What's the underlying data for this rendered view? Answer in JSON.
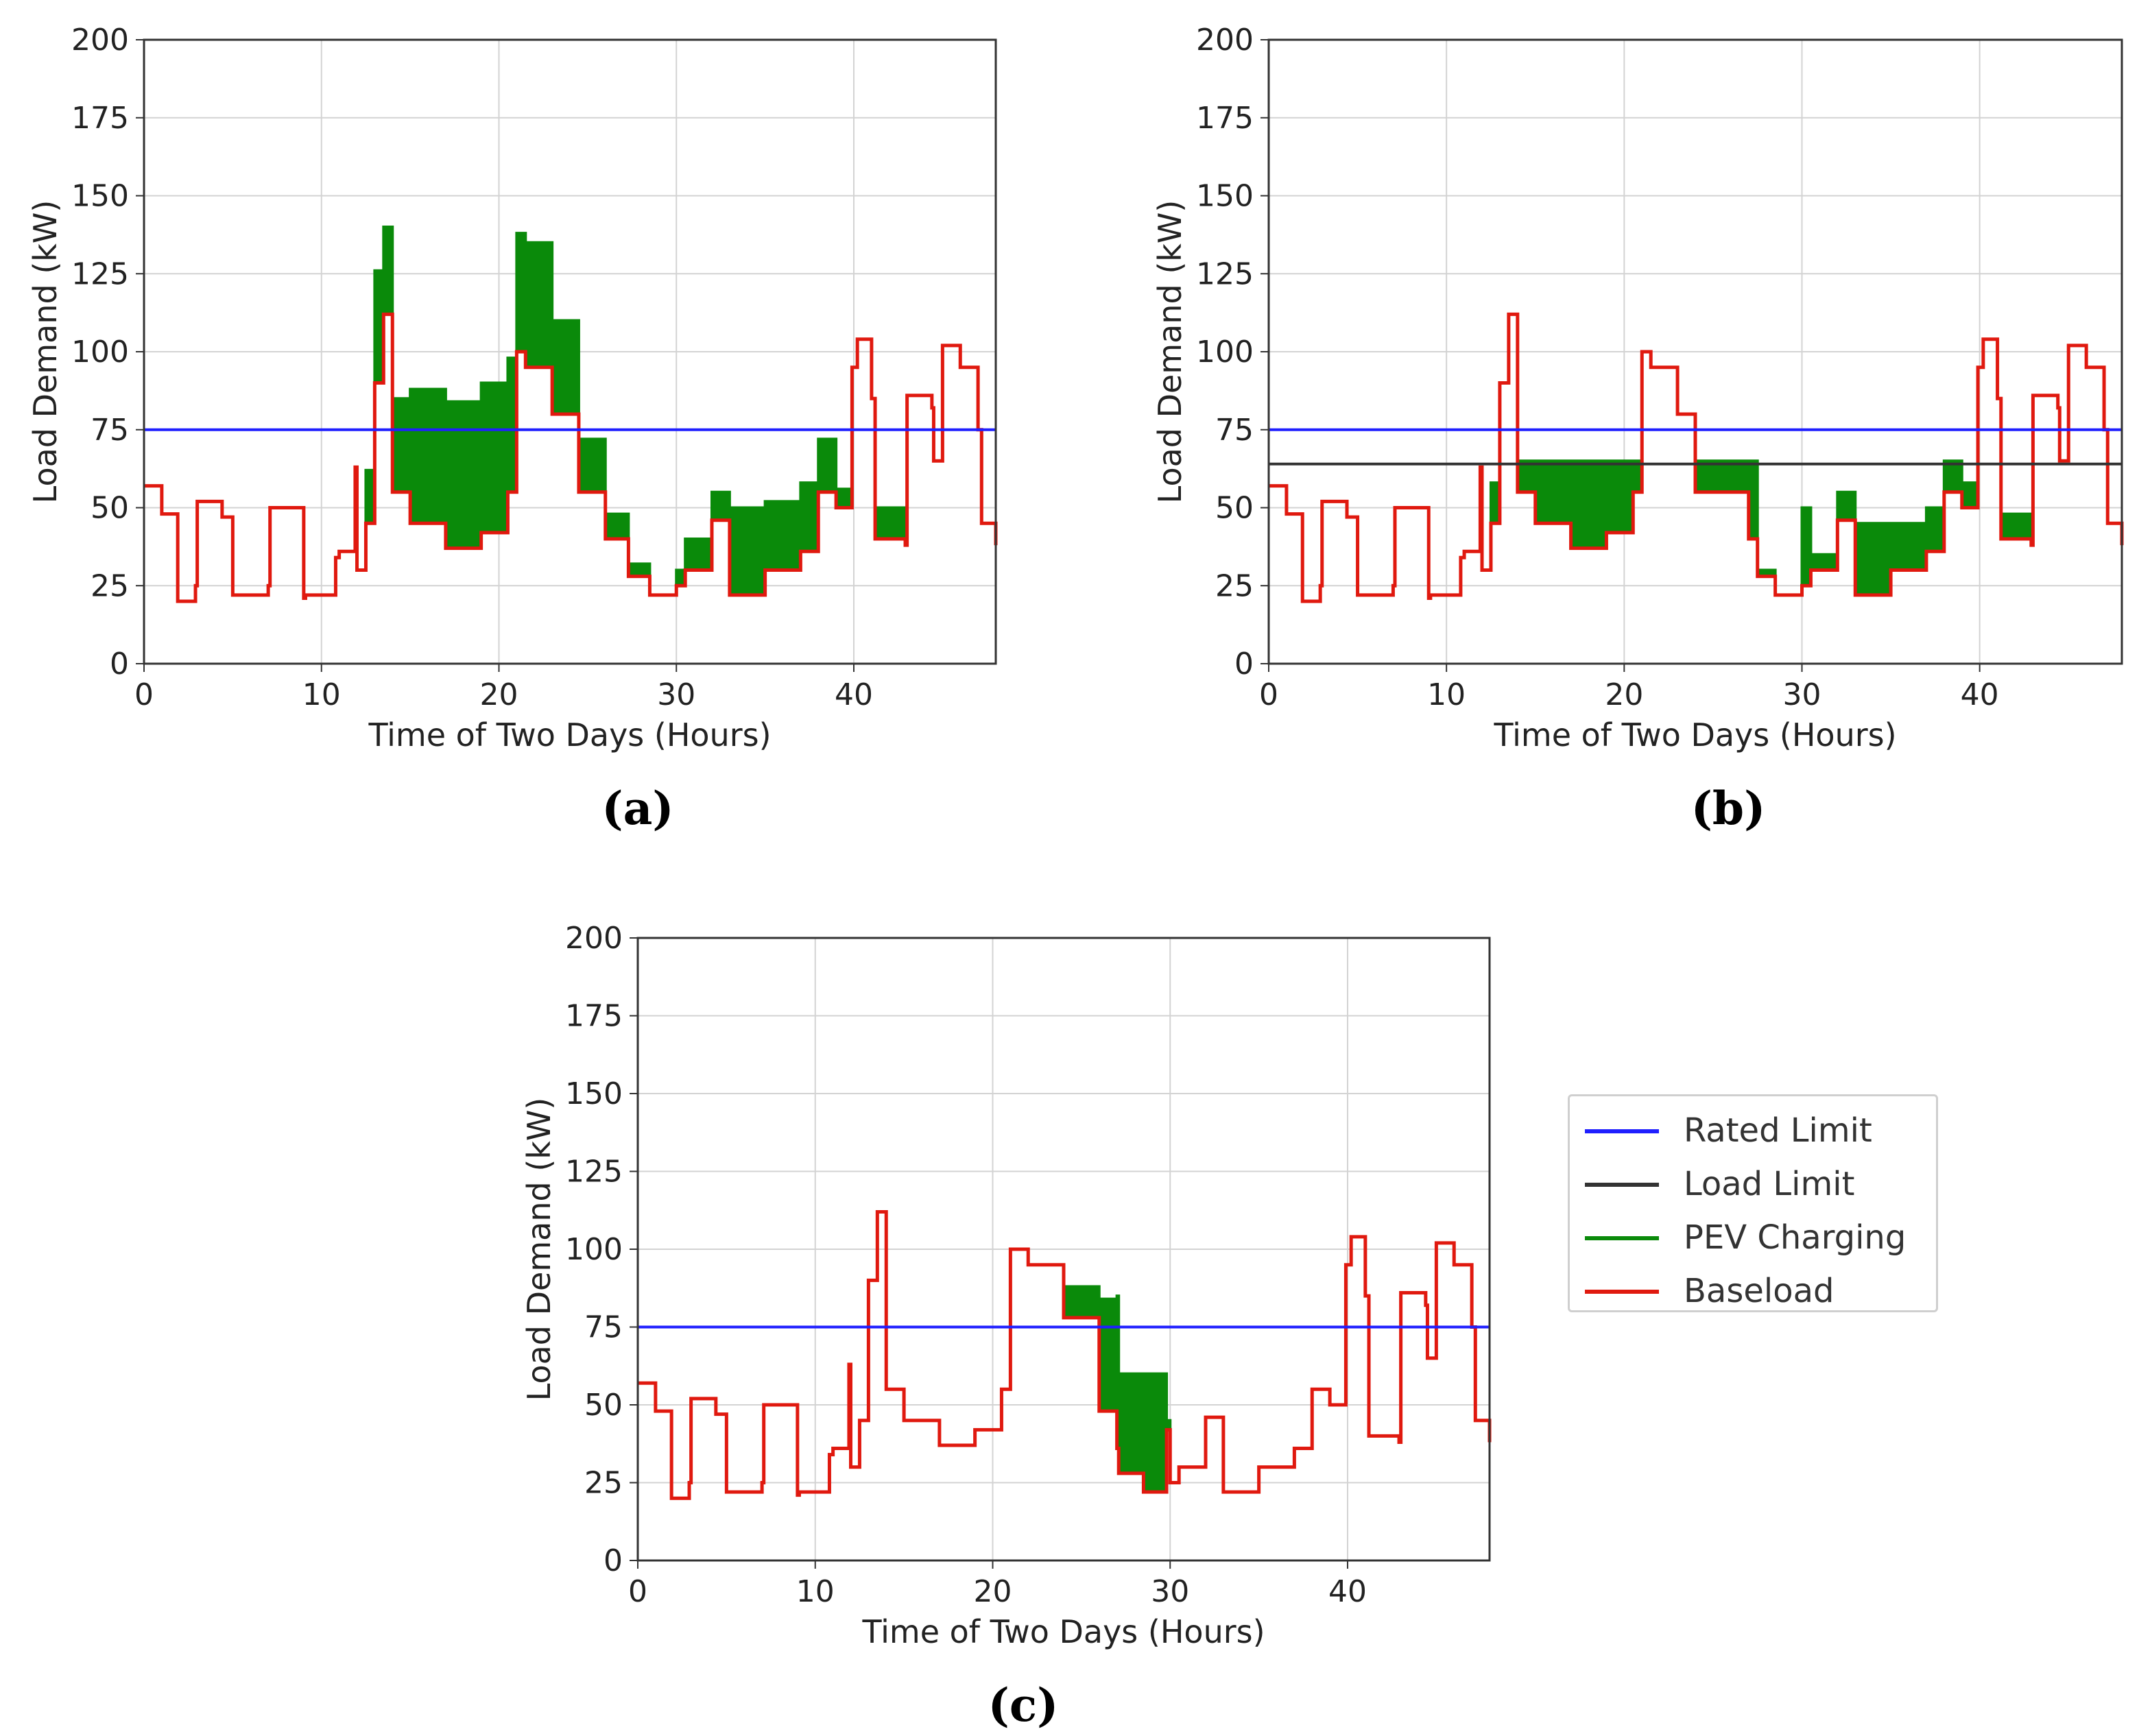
{
  "colors": {
    "rated_limit": "#1f1fff",
    "load_limit": "#333333",
    "pev_charging": "#0a8a0a",
    "baseload": "#e0190f",
    "grid": "#d3d3d3"
  },
  "captions": {
    "a": "(a)",
    "b": "(b)",
    "c": "(c)"
  },
  "legend": {
    "items": [
      {
        "label": "Rated Limit",
        "color": "#1f1fff"
      },
      {
        "label": "Load Limit",
        "color": "#333333"
      },
      {
        "label": "PEV Charging",
        "color": "#0a8a0a"
      },
      {
        "label": "Baseload",
        "color": "#e0190f"
      }
    ]
  },
  "chart_data": [
    {
      "id": "a",
      "type": "line",
      "caption": "(a)",
      "xlabel": "Time of Two Days (Hours)",
      "ylabel": "Load Demand (kW)",
      "xlim": [
        0,
        48
      ],
      "ylim": [
        0,
        200
      ],
      "xticks": [
        0,
        10,
        20,
        30,
        40
      ],
      "yticks": [
        0,
        25,
        50,
        75,
        100,
        125,
        150,
        175,
        200
      ],
      "grid": true,
      "rated_limit": 75,
      "load_limit": null,
      "series": [
        {
          "name": "PEV Charging",
          "x": [
            0,
            1,
            1.9,
            2.9,
            3,
            4.4,
            5,
            7,
            7.1,
            9,
            9.1,
            10.8,
            11,
            11.9,
            12,
            12.5,
            13,
            13.5,
            14,
            15,
            17,
            19,
            20.5,
            21,
            21.5,
            23,
            24.5,
            26,
            27.3,
            28.5,
            30,
            30.5,
            32,
            33,
            35,
            37,
            38,
            39,
            39.9,
            40.2,
            41,
            41.2,
            42.9,
            43,
            44.4,
            44.5,
            45,
            46,
            47,
            47.2,
            48
          ],
          "values": [
            57,
            48,
            20,
            25,
            52,
            47,
            22,
            25,
            50,
            21,
            22,
            34,
            36,
            63,
            30,
            62,
            126,
            140,
            85,
            88,
            84,
            90,
            98,
            138,
            135,
            110,
            72,
            48,
            32,
            22,
            30,
            40,
            55,
            50,
            52,
            58,
            72,
            56,
            95,
            104,
            85,
            50,
            40,
            86,
            82,
            65,
            102,
            95,
            75,
            45,
            38
          ]
        },
        {
          "name": "Baseload",
          "x": [
            0,
            1,
            1.9,
            2.9,
            3,
            4.4,
            5,
            7,
            7.1,
            9,
            9.1,
            10.8,
            11,
            11.9,
            12,
            12.5,
            13,
            13.5,
            14,
            15,
            17,
            19,
            20.5,
            21,
            21.5,
            23,
            24.5,
            26,
            27.3,
            28.5,
            30,
            30.5,
            32,
            33,
            35,
            37,
            38,
            39,
            39.9,
            40.2,
            41,
            41.2,
            42.9,
            43,
            44.4,
            44.5,
            45,
            46,
            47,
            47.2,
            48
          ],
          "values": [
            57,
            48,
            20,
            25,
            52,
            47,
            22,
            25,
            50,
            21,
            22,
            34,
            36,
            63,
            30,
            45,
            90,
            112,
            55,
            45,
            37,
            42,
            55,
            100,
            95,
            80,
            55,
            40,
            28,
            22,
            25,
            30,
            46,
            22,
            30,
            36,
            55,
            50,
            95,
            104,
            85,
            40,
            38,
            86,
            82,
            65,
            102,
            95,
            75,
            45,
            38
          ]
        }
      ]
    },
    {
      "id": "b",
      "type": "line",
      "caption": "(b)",
      "xlabel": "Time of Two Days (Hours)",
      "ylabel": "Load Demand (kW)",
      "xlim": [
        0,
        48
      ],
      "ylim": [
        0,
        200
      ],
      "xticks": [
        0,
        10,
        20,
        30,
        40
      ],
      "yticks": [
        0,
        25,
        50,
        75,
        100,
        125,
        150,
        175,
        200
      ],
      "grid": true,
      "rated_limit": 75,
      "load_limit": 64,
      "series": [
        {
          "name": "PEV Charging",
          "x": [
            0,
            1,
            1.9,
            2.9,
            3,
            4.4,
            5,
            7,
            7.1,
            9,
            9.1,
            10.8,
            11,
            11.9,
            12,
            12.5,
            13,
            13.5,
            14,
            15,
            17,
            19,
            20.5,
            21,
            21.5,
            23,
            24,
            27,
            27.5,
            28.5,
            30,
            30.5,
            32,
            33,
            35,
            37,
            38,
            39,
            39.9,
            40.2,
            41,
            41.2,
            42.9,
            43,
            44.4,
            44.5,
            45,
            46,
            47,
            47.2,
            48
          ],
          "values": [
            57,
            48,
            20,
            25,
            52,
            47,
            22,
            25,
            50,
            21,
            22,
            34,
            36,
            63,
            30,
            58,
            90,
            112,
            65,
            65,
            65,
            65,
            65,
            100,
            95,
            80,
            65,
            65,
            30,
            22,
            50,
            35,
            55,
            45,
            45,
            50,
            65,
            58,
            95,
            104,
            85,
            48,
            38,
            86,
            82,
            65,
            102,
            95,
            75,
            45,
            38
          ]
        },
        {
          "name": "Baseload",
          "x": [
            0,
            1,
            1.9,
            2.9,
            3,
            4.4,
            5,
            7,
            7.1,
            9,
            9.1,
            10.8,
            11,
            11.9,
            12,
            12.5,
            13,
            13.5,
            14,
            15,
            17,
            19,
            20.5,
            21,
            21.5,
            23,
            24,
            27,
            27.5,
            28.5,
            30,
            30.5,
            32,
            33,
            35,
            37,
            38,
            39,
            39.9,
            40.2,
            41,
            41.2,
            42.9,
            43,
            44.4,
            44.5,
            45,
            46,
            47,
            47.2,
            48
          ],
          "values": [
            57,
            48,
            20,
            25,
            52,
            47,
            22,
            25,
            50,
            21,
            22,
            34,
            36,
            63,
            30,
            45,
            90,
            112,
            55,
            45,
            37,
            42,
            55,
            100,
            95,
            80,
            55,
            40,
            28,
            22,
            25,
            30,
            46,
            22,
            30,
            36,
            55,
            50,
            95,
            104,
            85,
            40,
            38,
            86,
            82,
            65,
            102,
            95,
            75,
            45,
            38
          ]
        }
      ]
    },
    {
      "id": "c",
      "type": "line",
      "caption": "(c)",
      "xlabel": "Time of Two Days (Hours)",
      "ylabel": "Load Demand (kW)",
      "xlim": [
        0,
        48
      ],
      "ylim": [
        0,
        200
      ],
      "xticks": [
        0,
        10,
        20,
        30,
        40
      ],
      "yticks": [
        0,
        25,
        50,
        75,
        100,
        125,
        150,
        175,
        200
      ],
      "grid": true,
      "rated_limit": 75,
      "load_limit": null,
      "series": [
        {
          "name": "PEV Charging",
          "x": [
            0,
            1,
            1.9,
            2.9,
            3,
            4.4,
            5,
            7,
            7.1,
            9,
            9.1,
            10.8,
            11,
            11.9,
            12,
            12.5,
            13,
            13.5,
            14,
            15,
            17,
            19,
            20.5,
            21,
            22,
            24,
            26,
            27,
            27.1,
            28.5,
            29.8,
            30,
            30.5,
            32,
            33,
            35,
            37,
            38,
            39,
            39.9,
            40.2,
            41,
            41.2,
            42.9,
            43,
            44.4,
            44.5,
            45,
            46,
            47,
            47.2,
            48
          ],
          "values": [
            57,
            48,
            20,
            25,
            52,
            47,
            22,
            25,
            50,
            21,
            22,
            34,
            36,
            63,
            30,
            45,
            90,
            112,
            55,
            45,
            37,
            42,
            55,
            100,
            95,
            88,
            84,
            85,
            60,
            60,
            45,
            25,
            30,
            46,
            22,
            30,
            36,
            55,
            50,
            95,
            104,
            85,
            40,
            38,
            86,
            82,
            65,
            102,
            95,
            75,
            45,
            38
          ]
        },
        {
          "name": "Baseload",
          "x": [
            0,
            1,
            1.9,
            2.9,
            3,
            4.4,
            5,
            7,
            7.1,
            9,
            9.1,
            10.8,
            11,
            11.9,
            12,
            12.5,
            13,
            13.5,
            14,
            15,
            17,
            19,
            20.5,
            21,
            22,
            24,
            26,
            27,
            27.1,
            28.5,
            29.8,
            30,
            30.5,
            32,
            33,
            35,
            37,
            38,
            39,
            39.9,
            40.2,
            41,
            41.2,
            42.9,
            43,
            44.4,
            44.5,
            45,
            46,
            47,
            47.2,
            48
          ],
          "values": [
            57,
            48,
            20,
            25,
            52,
            47,
            22,
            25,
            50,
            21,
            22,
            34,
            36,
            63,
            30,
            45,
            90,
            112,
            55,
            45,
            37,
            42,
            55,
            100,
            95,
            78,
            48,
            36,
            28,
            22,
            42,
            25,
            30,
            46,
            22,
            30,
            36,
            55,
            50,
            95,
            104,
            85,
            40,
            38,
            86,
            82,
            65,
            102,
            95,
            75,
            45,
            38
          ]
        }
      ]
    }
  ]
}
